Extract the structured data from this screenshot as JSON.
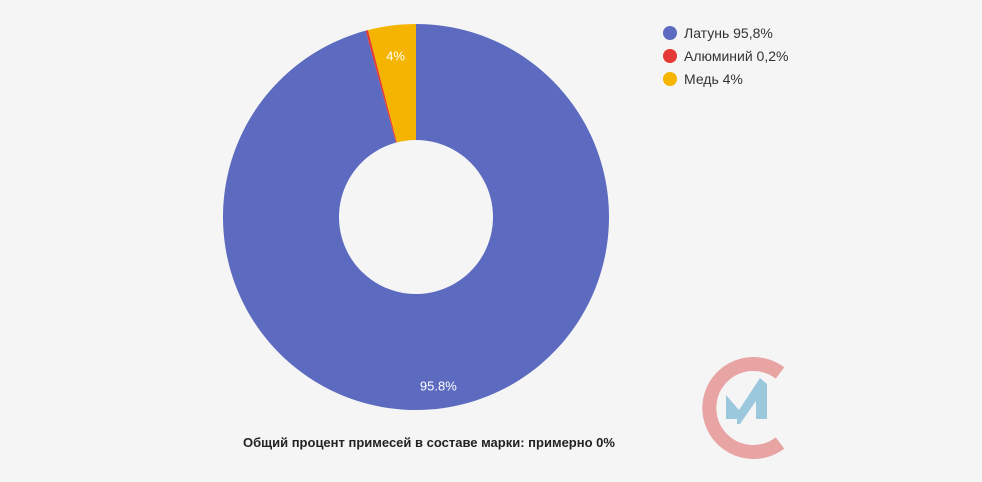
{
  "chart_data": {
    "type": "pie",
    "donut": true,
    "slices": [
      {
        "name": "Латунь",
        "legend_label": "Латунь 95,8%",
        "value": 95.8,
        "data_label": "95.8%",
        "color": "#5c6bc0"
      },
      {
        "name": "Алюминий",
        "legend_label": "Алюминий 0,2%",
        "value": 0.2,
        "data_label": "",
        "color": "#e53935"
      },
      {
        "name": "Медь",
        "legend_label": "Медь 4%",
        "value": 4,
        "data_label": "4%",
        "color": "#f4b400"
      }
    ],
    "legend_placement": "top-right"
  },
  "caption": "Общий процент примесей в составе марки: примерно 0%",
  "logo": {
    "ring_color": "#e8a3a3",
    "mark_color": "#9cc8de"
  }
}
